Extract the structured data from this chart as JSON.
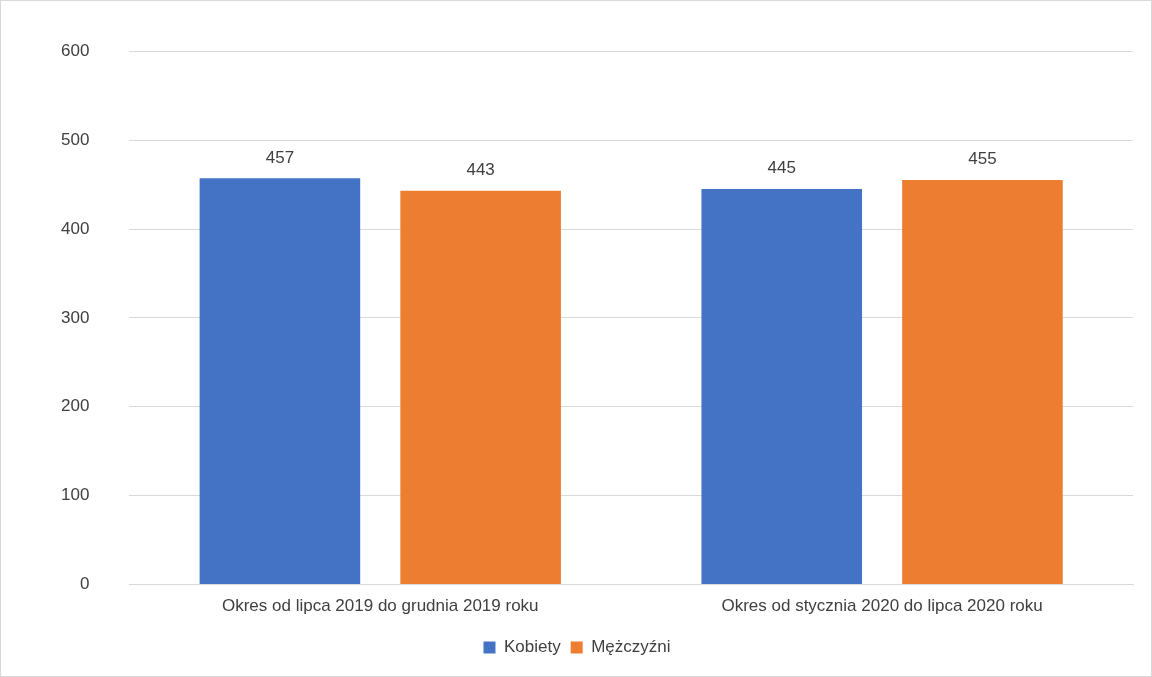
{
  "chart_data": {
    "type": "bar",
    "categories": [
      "Okres od lipca 2019 do grudnia 2019 roku",
      "Okres od stycznia 2020 do lipca 2020 roku"
    ],
    "series": [
      {
        "name": "Kobiety",
        "color": "#4472c4",
        "values": [
          457,
          445
        ]
      },
      {
        "name": "Mężczyźni",
        "color": "#ed7d31",
        "values": [
          443,
          455
        ]
      }
    ],
    "ylim": [
      0,
      600
    ],
    "yticks": [
      0,
      100,
      200,
      300,
      400,
      500,
      600
    ],
    "grid": "y",
    "legend": "bottom",
    "data_labels": true
  }
}
